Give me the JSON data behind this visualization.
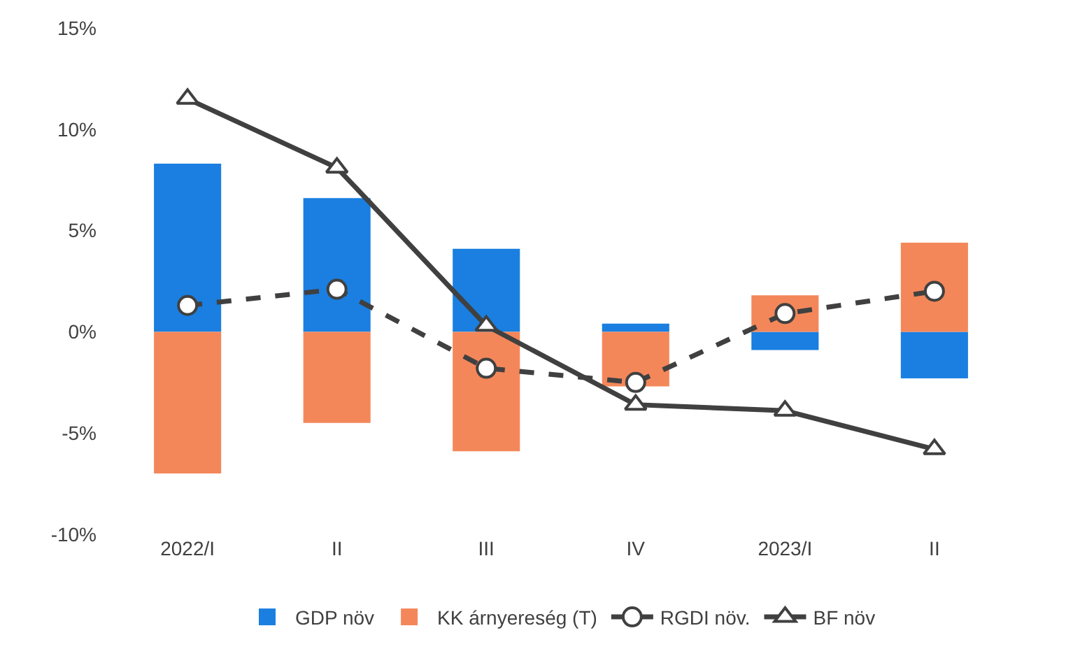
{
  "chart_data": {
    "type": "bar",
    "stacked": true,
    "categories": [
      "2022/I",
      "II",
      "III",
      "IV",
      "2023/I",
      "II"
    ],
    "series": [
      {
        "name": "GDP növ",
        "color": "#1a7fe0",
        "values": [
          8.3,
          6.6,
          4.1,
          0.4,
          -0.9,
          -2.3
        ]
      },
      {
        "name": "KK árnyereség (T)",
        "color": "#f4875a",
        "values": [
          -7.0,
          -4.5,
          -5.9,
          -2.7,
          1.8,
          4.4
        ]
      },
      {
        "name": "RGDI növ.",
        "type": "line",
        "color": "#404040",
        "line_style": "dashed",
        "marker": "circle",
        "values": [
          1.3,
          2.1,
          -1.8,
          -2.5,
          0.9,
          2.0
        ]
      },
      {
        "name": "BF növ",
        "type": "line",
        "color": "#404040",
        "line_style": "solid",
        "marker": "triangle",
        "values": [
          11.5,
          8.1,
          0.3,
          -3.6,
          -3.9,
          -5.8
        ]
      }
    ],
    "ylim": [
      -10,
      15
    ],
    "yticks": [
      {
        "value": -10,
        "label": "-10%"
      },
      {
        "value": -5,
        "label": "-5%"
      },
      {
        "value": 0,
        "label": "0%"
      },
      {
        "value": 5,
        "label": "5%"
      },
      {
        "value": 10,
        "label": "10%"
      },
      {
        "value": 15,
        "label": "15%"
      }
    ],
    "legend": "bottom"
  }
}
